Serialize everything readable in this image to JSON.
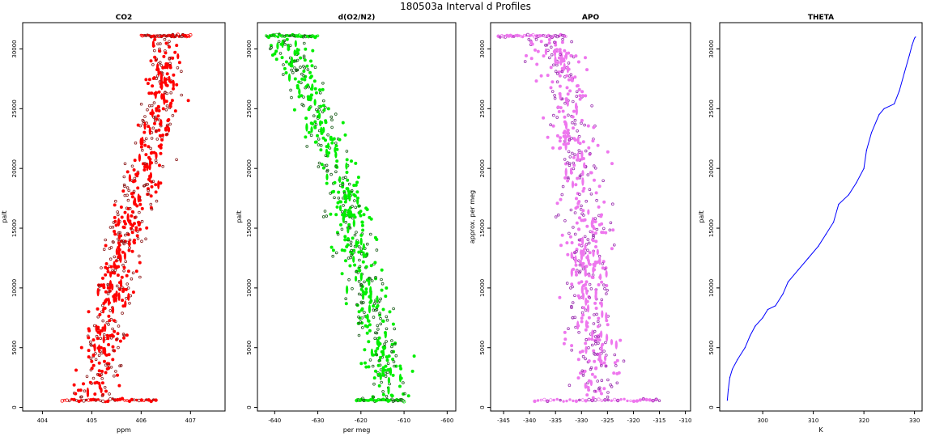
{
  "suptitle": "180503a   Interval d Profiles",
  "chart_data": [
    {
      "type": "scatter",
      "title": "CO2",
      "xlabel": "ppm",
      "ylabel": "palt",
      "xlim": [
        403.6,
        407.7
      ],
      "ylim": [
        -300,
        32200
      ],
      "xticks": [
        404,
        405,
        406,
        407
      ],
      "xtick_labels": [
        "404",
        "405",
        "406",
        "407"
      ],
      "yticks": [
        0,
        5000,
        10000,
        15000,
        20000,
        25000,
        30000
      ],
      "ytick_labels": [
        "0",
        "5000",
        "10000",
        "15000",
        "20000",
        "25000",
        "30000"
      ],
      "color": "#ff0000",
      "edge_color": "#8b1a1a",
      "profile": {
        "alt": [
          600,
          2000,
          5000,
          8000,
          10000,
          12000,
          15000,
          18000,
          20000,
          22000,
          25000,
          28000,
          30500,
          31100
        ],
        "val": [
          405.0,
          405.1,
          405.2,
          405.4,
          405.5,
          405.6,
          405.7,
          405.95,
          406.1,
          406.2,
          406.35,
          406.5,
          406.5,
          406.4
        ]
      },
      "spread": 0.3,
      "surface_band": {
        "alt": 600,
        "from": 404.4,
        "to": 406.3
      },
      "top_band": {
        "alt": 31100,
        "from": 406.0,
        "to": 407.0
      }
    },
    {
      "type": "scatter",
      "title": "d(O2/N2)",
      "xlabel": "per meg",
      "ylabel": "palt",
      "xlim": [
        -644,
        -598
      ],
      "ylim": [
        -300,
        32200
      ],
      "xticks": [
        -640,
        -630,
        -620,
        -610,
        -600
      ],
      "xtick_labels": [
        "-640",
        "-630",
        "-620",
        "-610",
        "-600"
      ],
      "yticks": [
        0,
        5000,
        10000,
        15000,
        20000,
        25000,
        30000
      ],
      "ytick_labels": [
        "0",
        "5000",
        "10000",
        "15000",
        "20000",
        "25000",
        "30000"
      ],
      "color": "#00ee00",
      "edge_color": "#1a5c1a",
      "profile": {
        "alt": [
          600,
          2000,
          5000,
          8000,
          10000,
          12000,
          15000,
          18000,
          20000,
          22000,
          25000,
          28000,
          30500,
          31100
        ],
        "val": [
          -612,
          -613,
          -615.5,
          -617,
          -619,
          -621,
          -622,
          -624,
          -625.5,
          -627.5,
          -630,
          -634,
          -638,
          -639
        ]
      },
      "spread": 3.5,
      "surface_band": {
        "alt": 600,
        "from": -621,
        "to": -610
      },
      "top_band": {
        "alt": 31100,
        "from": -642,
        "to": -630
      }
    },
    {
      "type": "scatter",
      "title": "APO",
      "xlabel": "",
      "ylabel": "approx. per meg",
      "xlim": [
        -347.5,
        -309
      ],
      "ylim": [
        -300,
        32200
      ],
      "xticks": [
        -345,
        -340,
        -335,
        -330,
        -325,
        -320,
        -315,
        -310
      ],
      "xtick_labels": [
        "-345",
        "-340",
        "-335",
        "-330",
        "-325",
        "-320",
        "-315",
        "-310"
      ],
      "yticks": [
        0,
        5000,
        10000,
        15000,
        20000,
        25000,
        30000
      ],
      "ytick_labels": [
        "0",
        "5000",
        "10000",
        "15000",
        "20000",
        "25000",
        "30000"
      ],
      "color": "#ee77ee",
      "edge_color": "#9b30b0",
      "profile": {
        "alt": [
          600,
          2000,
          5000,
          8000,
          10000,
          12000,
          15000,
          18000,
          20000,
          22000,
          25000,
          28000,
          30500,
          31100
        ],
        "val": [
          -326,
          -327,
          -327.5,
          -328,
          -328.5,
          -329,
          -329,
          -330,
          -330.5,
          -331,
          -332,
          -334,
          -336,
          -338
        ]
      },
      "spread": 3.5,
      "surface_band": {
        "alt": 600,
        "from": -339,
        "to": -315
      },
      "top_band": {
        "alt": 31100,
        "from": -346,
        "to": -333
      }
    },
    {
      "type": "line",
      "title": "THETA",
      "xlabel": "K",
      "ylabel": "palt",
      "xlim": [
        291.5,
        331.5
      ],
      "ylim": [
        -300,
        32200
      ],
      "xticks": [
        300,
        310,
        320,
        330
      ],
      "xtick_labels": [
        "300",
        "310",
        "320",
        "330"
      ],
      "yticks": [
        0,
        5000,
        10000,
        15000,
        20000,
        25000,
        30000
      ],
      "ytick_labels": [
        "0",
        "5000",
        "10000",
        "15000",
        "20000",
        "25000",
        "30000"
      ],
      "color": "#0000ff",
      "x": [
        293.0,
        293.2,
        293.5,
        294,
        295,
        296.5,
        297.5,
        298.5,
        300,
        301,
        302.5,
        304,
        305,
        307,
        309,
        311,
        312.5,
        314,
        315,
        317,
        318.5,
        320,
        320.5,
        321.5,
        323,
        324,
        326,
        327,
        328,
        329,
        329.5,
        330,
        330.2
      ],
      "y": [
        600,
        1500,
        2500,
        3200,
        4000,
        5000,
        6000,
        6800,
        7500,
        8200,
        8500,
        9500,
        10500,
        11500,
        12500,
        13500,
        14500,
        15500,
        17000,
        17800,
        18800,
        20000,
        21500,
        23000,
        24500,
        25000,
        25400,
        26500,
        28000,
        29500,
        30300,
        30900,
        31000
      ]
    }
  ]
}
